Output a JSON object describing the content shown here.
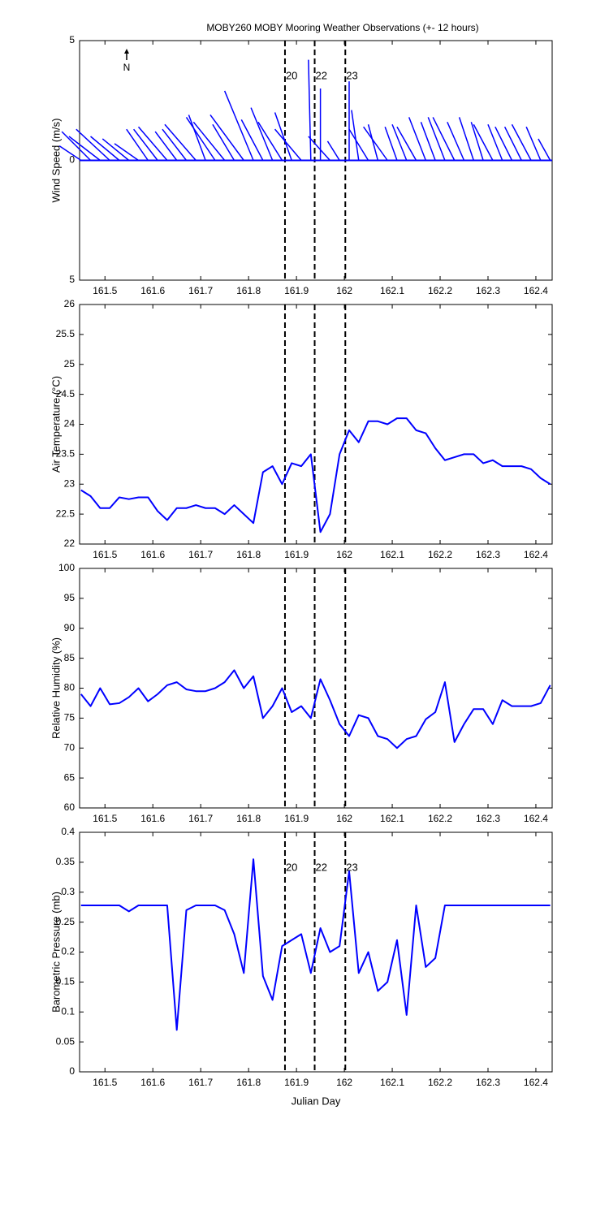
{
  "chart_data": [
    {
      "type": "stick",
      "title": "MOBY260 MOBY Mooring Weather Observations (+- 12 hours)",
      "ylabel": "Wind Speed (m/s)",
      "annotation": "N",
      "xlim": [
        161.447,
        162.434
      ],
      "xticks": [
        161.5,
        161.6,
        161.7,
        161.8,
        161.9,
        162,
        162.1,
        162.2,
        162.3,
        162.4
      ],
      "ylim": [
        -5,
        5
      ],
      "yticks": [
        {
          "value": -5,
          "label": "5"
        },
        0,
        5
      ],
      "vlines": [
        161.876,
        161.938,
        162.002
      ],
      "vline_labels": [
        "20",
        "22",
        "23"
      ],
      "vline_label_color": "#cc2222",
      "x": [
        161.45,
        161.47,
        161.49,
        161.51,
        161.53,
        161.55,
        161.57,
        161.59,
        161.61,
        161.63,
        161.65,
        161.67,
        161.69,
        161.71,
        161.73,
        161.75,
        161.77,
        161.79,
        161.81,
        161.83,
        161.85,
        161.87,
        161.89,
        161.91,
        161.93,
        161.95,
        161.97,
        161.99,
        162.01,
        162.03,
        162.05,
        162.07,
        162.09,
        162.11,
        162.13,
        162.15,
        162.17,
        162.19,
        162.21,
        162.23,
        162.25,
        162.27,
        162.29,
        162.31,
        162.33,
        162.35,
        162.37,
        162.39,
        162.41,
        162.43
      ],
      "series": [
        {
          "color": "#0000ff",
          "u": [
            -0.9,
            -1.2,
            -1.3,
            -1.4,
            -1.2,
            -1.1,
            -1.0,
            -0.9,
            -1.0,
            -1.2,
            -0.9,
            -1.0,
            -1.3,
            -0.7,
            -1.2,
            -1.3,
            -0.9,
            -1.4,
            -1.2,
            -0.9,
            -0.9,
            -1.0,
            -0.7,
            -1.1,
            -0.1,
            0,
            -0.9,
            -0.5,
            0,
            -0.3,
            -0.8,
            -0.4,
            -1.0,
            -0.5,
            -0.6,
            -0.8,
            -0.7,
            -0.6,
            -0.7,
            -0.9,
            -0.7,
            -0.6,
            -0.5,
            -0.8,
            -0.6,
            -0.7,
            -0.7,
            -0.8,
            -0.6,
            -0.5
          ],
          "values": [
            0.6,
            1.2,
            1.0,
            1.3,
            1.0,
            0.9,
            0.7,
            1.3,
            1.3,
            1.4,
            1.2,
            1.3,
            1.5,
            1.9,
            1.8,
            1.6,
            1.5,
            1.9,
            2.9,
            1.7,
            2.2,
            1.6,
            2.0,
            1.3,
            4.2,
            3.0,
            1.0,
            0.8,
            3.3,
            2.1,
            1.3,
            1.5,
            1.4,
            1.4,
            1.5,
            1.4,
            1.8,
            1.6,
            1.8,
            1.8,
            1.6,
            1.8,
            1.6,
            1.5,
            1.5,
            1.4,
            1.4,
            1.5,
            1.4,
            0.9
          ]
        }
      ]
    },
    {
      "type": "line",
      "ylabel": "Air Temperature (°C)",
      "xlim": [
        161.447,
        162.434
      ],
      "xticks": [
        161.5,
        161.6,
        161.7,
        161.8,
        161.9,
        162,
        162.1,
        162.2,
        162.3,
        162.4
      ],
      "ylim": [
        22,
        26
      ],
      "yticks": [
        22,
        22.5,
        23,
        23.5,
        24,
        24.5,
        25,
        25.5,
        26
      ],
      "vlines": [
        161.876,
        161.938,
        162.002
      ],
      "x": [
        161.45,
        161.47,
        161.49,
        161.51,
        161.53,
        161.55,
        161.57,
        161.59,
        161.61,
        161.63,
        161.65,
        161.67,
        161.69,
        161.71,
        161.73,
        161.75,
        161.77,
        161.79,
        161.81,
        161.83,
        161.85,
        161.87,
        161.89,
        161.91,
        161.93,
        161.95,
        161.97,
        161.99,
        162.01,
        162.03,
        162.05,
        162.07,
        162.09,
        162.11,
        162.13,
        162.15,
        162.17,
        162.19,
        162.21,
        162.23,
        162.25,
        162.27,
        162.29,
        162.31,
        162.33,
        162.35,
        162.37,
        162.39,
        162.41,
        162.43
      ],
      "series": [
        {
          "color": "#0000ff",
          "values": [
            22.9,
            22.8,
            22.6,
            22.6,
            22.78,
            22.75,
            22.78,
            22.78,
            22.55,
            22.4,
            22.6,
            22.6,
            22.65,
            22.6,
            22.6,
            22.5,
            22.65,
            22.5,
            22.35,
            23.2,
            23.3,
            23.0,
            23.35,
            23.3,
            23.5,
            22.2,
            22.5,
            23.5,
            23.9,
            23.7,
            24.05,
            24.05,
            24.0,
            24.1,
            24.1,
            23.9,
            23.85,
            23.6,
            23.4,
            23.45,
            23.5,
            23.5,
            23.35,
            23.4,
            23.3,
            23.3,
            23.3,
            23.25,
            23.1,
            23.0
          ]
        }
      ]
    },
    {
      "type": "line",
      "ylabel": "Relative Humidity (%)",
      "xlim": [
        161.447,
        162.434
      ],
      "xticks": [
        161.5,
        161.6,
        161.7,
        161.8,
        161.9,
        162,
        162.1,
        162.2,
        162.3,
        162.4
      ],
      "ylim": [
        60,
        100
      ],
      "yticks": [
        60,
        65,
        70,
        75,
        80,
        85,
        90,
        95,
        100
      ],
      "vlines": [
        161.876,
        161.938,
        162.002
      ],
      "x": [
        161.45,
        161.47,
        161.49,
        161.51,
        161.53,
        161.55,
        161.57,
        161.59,
        161.61,
        161.63,
        161.65,
        161.67,
        161.69,
        161.71,
        161.73,
        161.75,
        161.77,
        161.79,
        161.81,
        161.83,
        161.85,
        161.87,
        161.89,
        161.91,
        161.93,
        161.95,
        161.97,
        161.99,
        162.01,
        162.03,
        162.05,
        162.07,
        162.09,
        162.11,
        162.13,
        162.15,
        162.17,
        162.19,
        162.21,
        162.23,
        162.25,
        162.27,
        162.29,
        162.31,
        162.33,
        162.35,
        162.37,
        162.39,
        162.41,
        162.43
      ],
      "series": [
        {
          "color": "#0000ff",
          "values": [
            79,
            77,
            80,
            77.3,
            77.5,
            78.5,
            80,
            77.8,
            79,
            80.5,
            81,
            79.8,
            79.5,
            79.5,
            80,
            81,
            83,
            80,
            82,
            75,
            77,
            80,
            76,
            77,
            75,
            81.5,
            78,
            74,
            72,
            75.5,
            75,
            72,
            71.5,
            70,
            71.5,
            72,
            74.8,
            76,
            81,
            71,
            74,
            76.5,
            76.5,
            74,
            78,
            77,
            77,
            77,
            77.5,
            80.5
          ]
        }
      ]
    },
    {
      "type": "line",
      "ylabel": "Barometric Pressure (mb)",
      "xlabel": "Julian Day",
      "xlim": [
        161.447,
        162.434
      ],
      "xticks": [
        161.5,
        161.6,
        161.7,
        161.8,
        161.9,
        162,
        162.1,
        162.2,
        162.3,
        162.4
      ],
      "ylim": [
        0,
        0.4
      ],
      "yticks": [
        0,
        0.05,
        0.1,
        0.15,
        0.2,
        0.25,
        0.3,
        0.35,
        0.4
      ],
      "vlines": [
        161.876,
        161.938,
        162.002
      ],
      "vline_labels": [
        "20",
        "22",
        "23"
      ],
      "vline_label_color": "#cc2222",
      "x": [
        161.45,
        161.47,
        161.49,
        161.51,
        161.53,
        161.55,
        161.57,
        161.59,
        161.61,
        161.63,
        161.65,
        161.67,
        161.69,
        161.71,
        161.73,
        161.75,
        161.77,
        161.79,
        161.81,
        161.83,
        161.85,
        161.87,
        161.89,
        161.91,
        161.93,
        161.95,
        161.97,
        161.99,
        162.01,
        162.03,
        162.05,
        162.07,
        162.09,
        162.11,
        162.13,
        162.15,
        162.17,
        162.19,
        162.21,
        162.23,
        162.25,
        162.27,
        162.29,
        162.31,
        162.33,
        162.35,
        162.37,
        162.39,
        162.41,
        162.43
      ],
      "series": [
        {
          "color": "#0000ff",
          "values": [
            0.278,
            0.278,
            0.278,
            0.278,
            0.278,
            0.268,
            0.278,
            0.278,
            0.278,
            0.278,
            0.07,
            0.27,
            0.278,
            0.278,
            0.278,
            0.27,
            0.23,
            0.165,
            0.355,
            0.16,
            0.12,
            0.21,
            0.22,
            0.23,
            0.165,
            0.24,
            0.2,
            0.21,
            0.335,
            0.165,
            0.2,
            0.135,
            0.15,
            0.22,
            0.095,
            0.278,
            0.175,
            0.19,
            0.278,
            0.278,
            0.278,
            0.278,
            0.278,
            0.278,
            0.278,
            0.278,
            0.278,
            0.278,
            0.278,
            0.278
          ]
        }
      ]
    }
  ]
}
